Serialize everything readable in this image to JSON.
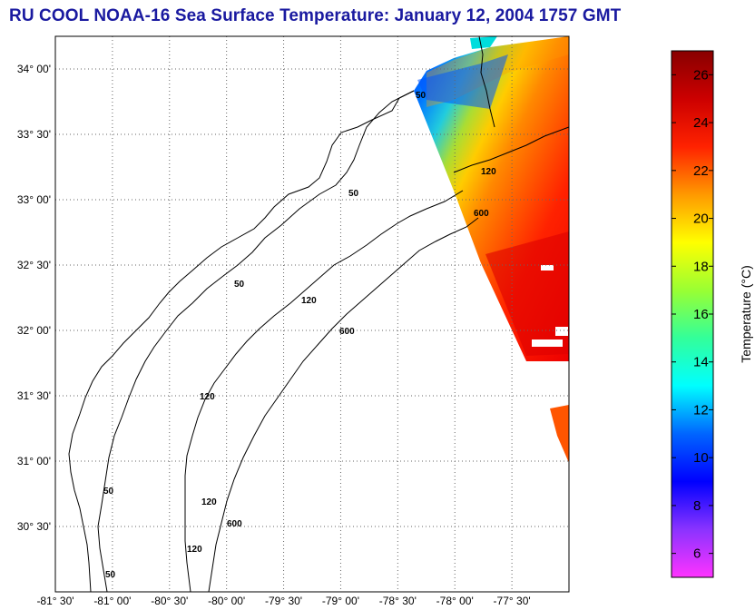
{
  "title": "RU COOL  NOAA-16  Sea Surface Temperature:  January 12, 2004 1757 GMT",
  "map": {
    "lon_range": [
      -81.5,
      -77.0
    ],
    "lat_range": [
      30.0,
      34.25
    ],
    "lat_ticks": [
      "34° 00'",
      "33° 30'",
      "33° 00'",
      "32° 30'",
      "32° 00'",
      "31° 30'",
      "31° 00'",
      "30° 30'"
    ],
    "lon_ticks": [
      "-81° 30'",
      "-81° 00'",
      "-80° 30'",
      "-80° 00'",
      "-79° 30'",
      "-79° 00'",
      "-78° 30'",
      "-78° 00'",
      "-77° 30'"
    ],
    "grid": "dotted",
    "contours": [
      "50",
      "120",
      "600"
    ]
  },
  "colorbar": {
    "label": "Temperature (°C)",
    "min": 5,
    "max": 27,
    "ticks": [
      "6",
      "8",
      "10",
      "12",
      "14",
      "16",
      "18",
      "20",
      "22",
      "24",
      "26"
    ],
    "colors": [
      "#ff33ff",
      "#8a33ff",
      "#0000ff",
      "#0066ff",
      "#00ffff",
      "#33ff99",
      "#99ff33",
      "#ffff00",
      "#ff9900",
      "#ff2200",
      "#cc0000",
      "#880000"
    ]
  }
}
